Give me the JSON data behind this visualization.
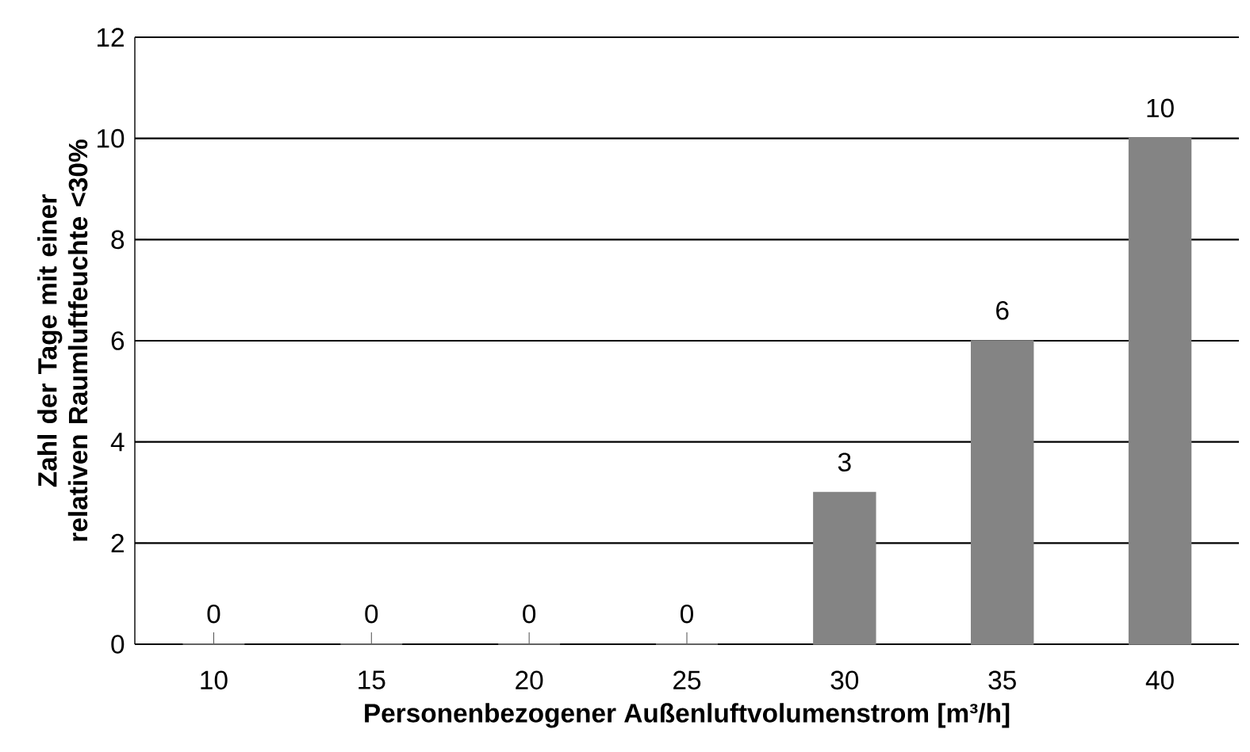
{
  "chart_data": {
    "type": "bar",
    "xlabel": "Personenbezogener Außenluftvolumenstrom [m³/h]",
    "ylabel": "Zahl der Tage mit einer relativen Raumluftfeuchte <30%",
    "categories": [
      "10",
      "15",
      "20",
      "25",
      "30",
      "35",
      "40"
    ],
    "values": [
      0,
      0,
      0,
      0,
      3,
      6,
      10
    ],
    "color": "#848484",
    "ylim": [
      0,
      12
    ],
    "yticks": [
      0,
      2,
      4,
      6,
      8,
      10,
      12
    ],
    "grid": "y",
    "data_labels": true
  }
}
